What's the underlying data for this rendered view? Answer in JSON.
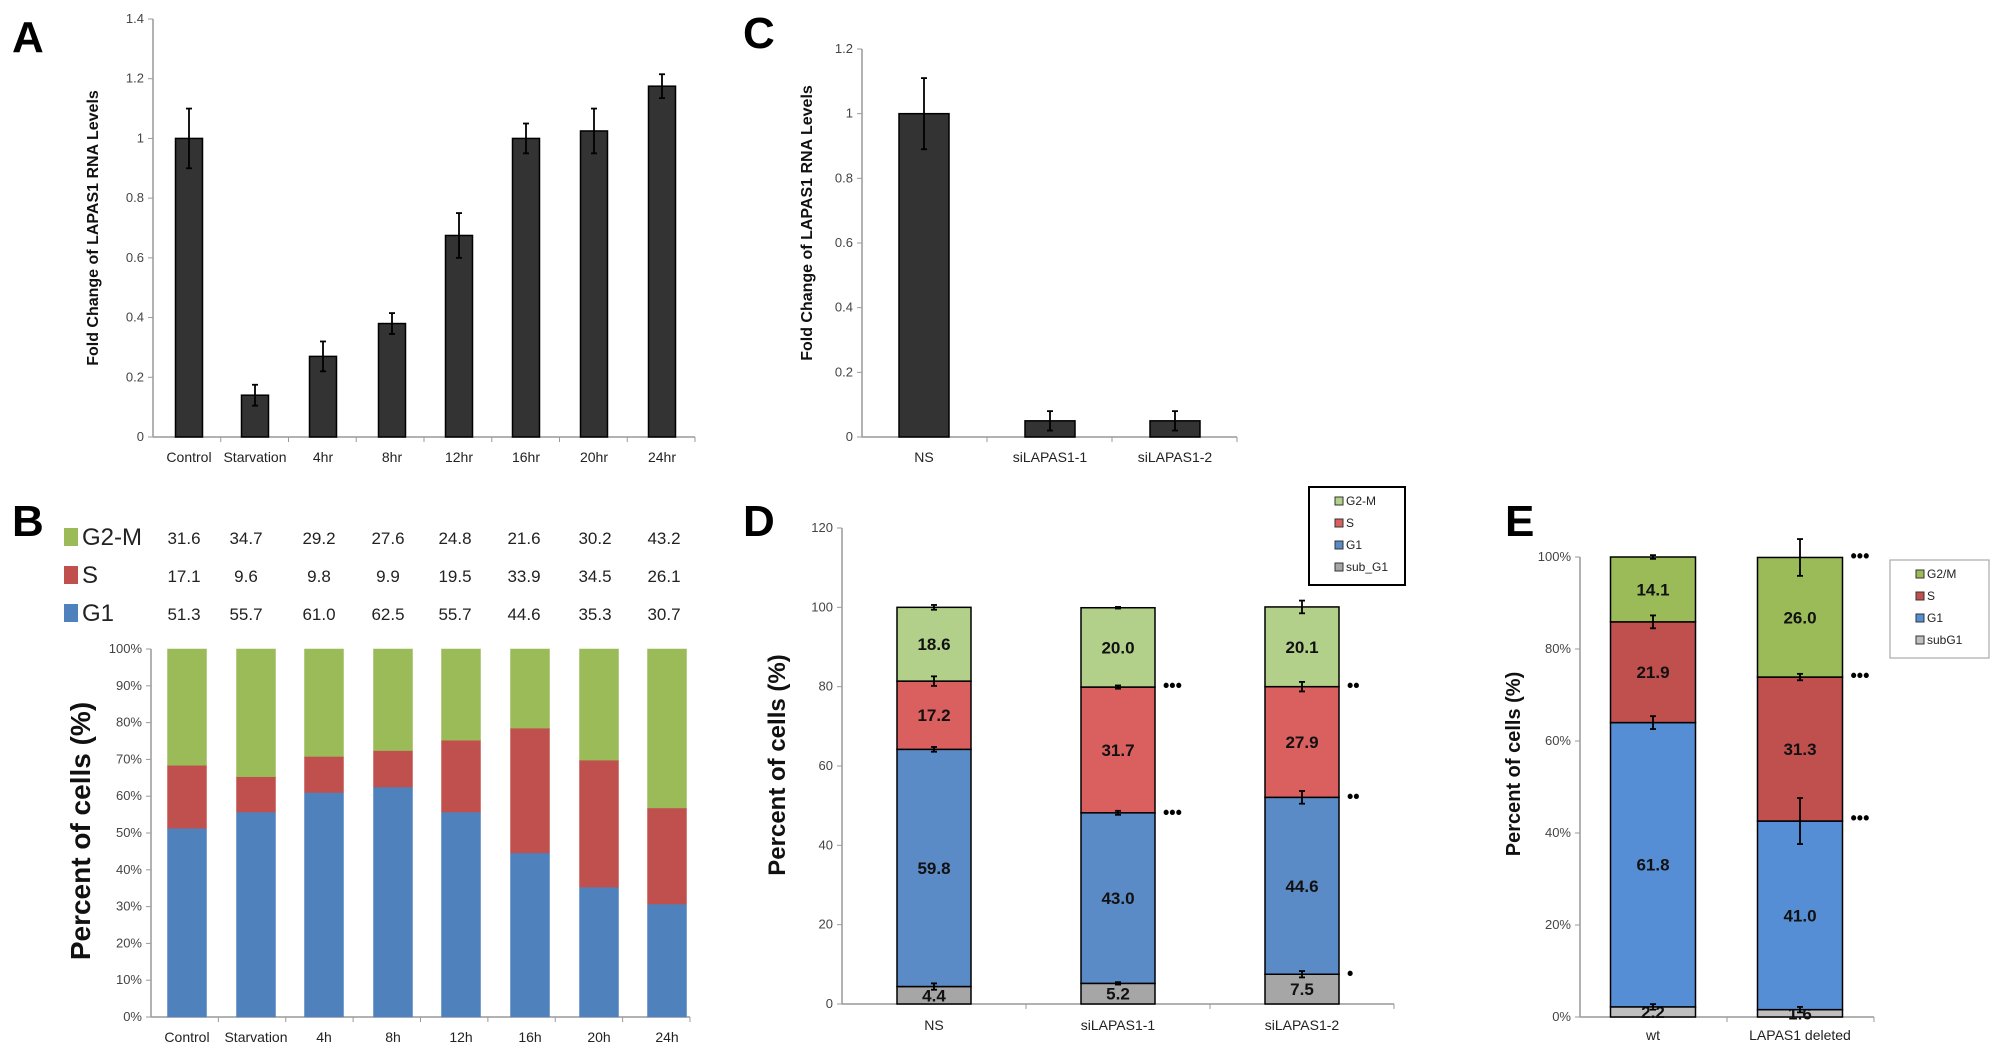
{
  "chart_data": [
    {
      "panel": "A",
      "type": "bar",
      "ylabel": "Fold Change of LAPAS1 RNA Levels",
      "ylim": [
        0,
        1.4
      ],
      "yticks": [
        "0",
        "0.2",
        "0.4",
        "0.6",
        "0.8",
        "1",
        "1.2",
        "1.4"
      ],
      "categories": [
        "Control",
        "Starvation",
        "4hr",
        "8hr",
        "12hr",
        "16hr",
        "20hr",
        "24hr"
      ],
      "values": [
        1.0,
        0.14,
        0.27,
        0.38,
        0.675,
        1.0,
        1.025,
        1.175
      ],
      "errors": [
        0.1,
        0.035,
        0.05,
        0.035,
        0.075,
        0.05,
        0.075,
        0.04
      ],
      "bar_color": "#333333",
      "grid": false
    },
    {
      "panel": "B",
      "type": "bar",
      "stacked": true,
      "ylabel": "Percent of cells (%)",
      "ylim": [
        0,
        100
      ],
      "yticks": [
        "0%",
        "10%",
        "20%",
        "30%",
        "40%",
        "50%",
        "60%",
        "70%",
        "80%",
        "90%",
        "100%"
      ],
      "categories": [
        "Control",
        "Starvation",
        "4h",
        "8h",
        "12h",
        "16h",
        "20h",
        "24h"
      ],
      "series": [
        {
          "name": "G1",
          "color": "#4f81bd",
          "values": [
            "51.3",
            "55.7",
            "61.0",
            "62.5",
            "55.7",
            "44.6",
            "35.3",
            "30.7"
          ]
        },
        {
          "name": "S",
          "color": "#c0504d",
          "values": [
            "17.1",
            "9.6",
            "9.8",
            "9.9",
            "19.5",
            "33.9",
            "34.5",
            "26.1"
          ]
        },
        {
          "name": "G2-M",
          "color": "#9bbb59",
          "values": [
            "31.6",
            "34.7",
            "29.2",
            "27.6",
            "24.8",
            "21.6",
            "30.2",
            "43.2"
          ]
        }
      ],
      "legend": "top-left table",
      "grid": false
    },
    {
      "panel": "C",
      "type": "bar",
      "ylabel": "Fold Change of LAPAS1 RNA Levels",
      "ylim": [
        0,
        1.2
      ],
      "yticks": [
        "0",
        "0.2",
        "0.4",
        "0.6",
        "0.8",
        "1",
        "1.2"
      ],
      "categories": [
        "NS",
        "siLAPAS1-1",
        "siLAPAS1-2"
      ],
      "values": [
        1.0,
        0.05,
        0.05
      ],
      "errors": [
        0.11,
        0.03,
        0.03
      ],
      "bar_color": "#333333",
      "grid": false
    },
    {
      "panel": "D",
      "type": "bar",
      "stacked": true,
      "ylabel": "Percent of cells (%)",
      "ylim": [
        0,
        120
      ],
      "yticks": [
        "0",
        "20",
        "40",
        "60",
        "80",
        "100",
        "120"
      ],
      "categories": [
        "NS",
        "siLAPAS1-1",
        "siLAPAS1-2"
      ],
      "series": [
        {
          "name": "sub_G1",
          "color": "#a6a6a6",
          "values": [
            "4.4",
            "5.2",
            "7.5"
          ],
          "errors": [
            0.8,
            0.3,
            0.8
          ]
        },
        {
          "name": "G1",
          "color": "#5b8bc6",
          "values": [
            "59.8",
            "43.0",
            "44.6"
          ],
          "errors": [
            0.6,
            0.5,
            1.6
          ]
        },
        {
          "name": "S",
          "color": "#d9605e",
          "values": [
            "17.2",
            "31.7",
            "27.9"
          ],
          "errors": [
            1.2,
            0.4,
            1.2
          ]
        },
        {
          "name": "G2-M",
          "color": "#b3d08a",
          "values": [
            "18.6",
            "20.0",
            "20.1"
          ],
          "errors": [
            0.6,
            0.2,
            1.6
          ]
        }
      ],
      "significance": [
        {
          "category": 1,
          "y": 80,
          "text": "•••"
        },
        {
          "category": 1,
          "y": 48,
          "text": "•••"
        },
        {
          "category": 2,
          "y": 80,
          "text": "••"
        },
        {
          "category": 2,
          "y": 52,
          "text": "••"
        },
        {
          "category": 2,
          "y": 7.5,
          "text": "•"
        }
      ],
      "legend_order": [
        "G2-M",
        "S",
        "G1",
        "sub_G1"
      ],
      "legend": "top-right",
      "grid": false
    },
    {
      "panel": "E",
      "type": "bar",
      "stacked": true,
      "ylabel": "Percent of cells (%)",
      "ylim": [
        0,
        100
      ],
      "yticks": [
        "0%",
        "20%",
        "40%",
        "60%",
        "80%",
        "100%"
      ],
      "categories": [
        "wt",
        "LAPAS1 deleted"
      ],
      "series": [
        {
          "name": "subG1",
          "color": "#bfbfbf",
          "values": [
            "2.2",
            "1.6"
          ],
          "errors": [
            0.6,
            0.6
          ]
        },
        {
          "name": "G1",
          "color": "#558ed5",
          "values": [
            "61.8",
            "41.0"
          ],
          "errors": [
            1.4,
            5.0
          ]
        },
        {
          "name": "S",
          "color": "#c0504d",
          "values": [
            "21.9",
            "31.3"
          ],
          "errors": [
            1.4,
            0.7
          ]
        },
        {
          "name": "G2/M",
          "color": "#9bbb59",
          "values": [
            "14.1",
            "26.0"
          ],
          "errors": [
            0.4,
            4.0
          ]
        }
      ],
      "significance": [
        {
          "category": 1,
          "y": 100,
          "text": "•••"
        },
        {
          "category": 1,
          "y": 74,
          "text": "•••"
        },
        {
          "category": 1,
          "y": 43,
          "text": "•••"
        }
      ],
      "legend_order": [
        "G2/M",
        "S",
        "G1",
        "subG1"
      ],
      "legend": "right",
      "grid": false
    }
  ]
}
